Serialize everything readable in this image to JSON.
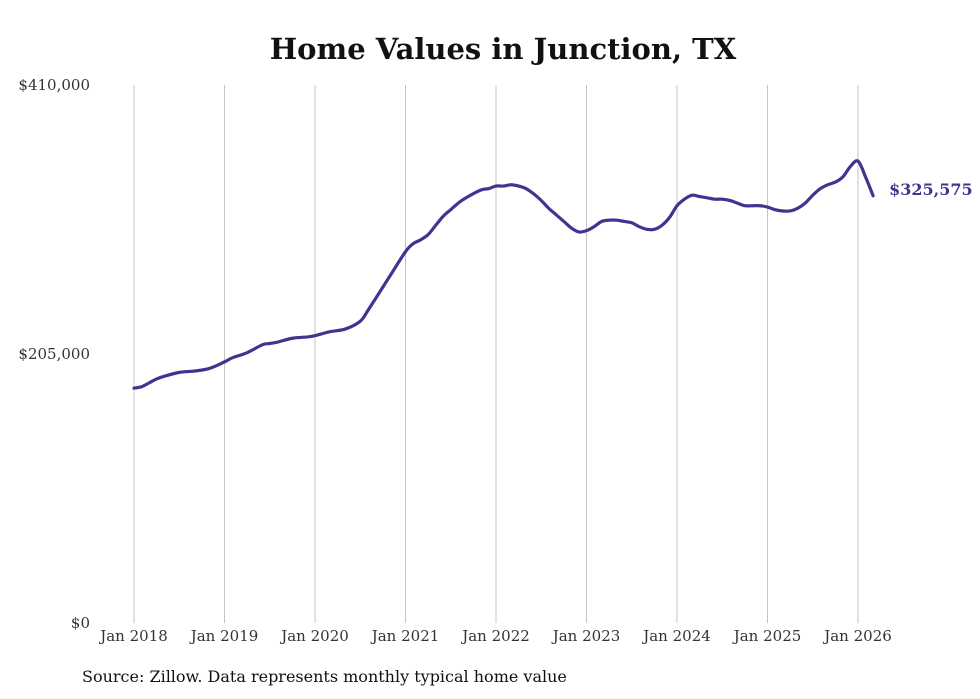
{
  "chart_data": {
    "type": "line",
    "title": "Home Values in Junction, TX",
    "xlabel": "",
    "ylabel": "",
    "ylim": [
      0,
      410000
    ],
    "y_ticks": [
      {
        "value": 0,
        "label": "$0"
      },
      {
        "value": 205000,
        "label": "$205,000"
      },
      {
        "value": 410000,
        "label": "$410,000"
      }
    ],
    "x_ticks": [
      {
        "value": 2018.0,
        "label": "Jan 2018"
      },
      {
        "value": 2019.0,
        "label": "Jan 2019"
      },
      {
        "value": 2020.0,
        "label": "Jan 2020"
      },
      {
        "value": 2021.0,
        "label": "Jan 2021"
      },
      {
        "value": 2022.0,
        "label": "Jan 2022"
      },
      {
        "value": 2023.0,
        "label": "Jan 2023"
      },
      {
        "value": 2024.0,
        "label": "Jan 2024"
      },
      {
        "value": 2025.0,
        "label": "Jan 2025"
      },
      {
        "value": 2026.0,
        "label": "Jan 2026"
      }
    ],
    "xlim": [
      2018.0,
      2026.167
    ],
    "grid": "vertical",
    "series": [
      {
        "name": "Typical home value",
        "color": "#3f3590",
        "x": [
          2018.0,
          2018.083,
          2018.167,
          2018.25,
          2018.333,
          2018.5,
          2018.667,
          2018.833,
          2019.0,
          2019.083,
          2019.25,
          2019.417,
          2019.5,
          2019.583,
          2019.75,
          2019.917,
          2020.0,
          2020.167,
          2020.333,
          2020.5,
          2020.583,
          2020.667,
          2020.833,
          2021.0,
          2021.083,
          2021.167,
          2021.25,
          2021.333,
          2021.417,
          2021.5,
          2021.583,
          2021.667,
          2021.833,
          2021.917,
          2022.0,
          2022.083,
          2022.167,
          2022.25,
          2022.333,
          2022.417,
          2022.5,
          2022.583,
          2022.667,
          2022.75,
          2022.833,
          2022.917,
          2023.0,
          2023.083,
          2023.167,
          2023.25,
          2023.333,
          2023.417,
          2023.5,
          2023.583,
          2023.667,
          2023.75,
          2023.833,
          2023.917,
          2024.0,
          2024.083,
          2024.167,
          2024.25,
          2024.333,
          2024.417,
          2024.5,
          2024.583,
          2024.667,
          2024.75,
          2024.833,
          2024.917,
          2025.0,
          2025.083,
          2025.167,
          2025.25,
          2025.333,
          2025.417,
          2025.5,
          2025.583,
          2025.667,
          2025.75,
          2025.833,
          2025.917,
          2026.0,
          2026.083,
          2026.167
        ],
        "values": [
          179000,
          180000,
          183000,
          186000,
          188000,
          191000,
          192000,
          194000,
          199000,
          202000,
          206000,
          212000,
          213000,
          214000,
          217000,
          218000,
          219000,
          222000,
          224000,
          230000,
          238000,
          247000,
          265000,
          283000,
          289000,
          292000,
          296000,
          303000,
          310000,
          315000,
          320000,
          324000,
          330000,
          331000,
          333000,
          333000,
          334000,
          333000,
          331000,
          327000,
          322000,
          316000,
          311000,
          306000,
          301000,
          298000,
          299000,
          302000,
          306000,
          307000,
          307000,
          306000,
          305000,
          302000,
          300000,
          300000,
          303000,
          309000,
          318000,
          323000,
          326000,
          325000,
          324000,
          323000,
          323000,
          322000,
          320000,
          318000,
          318000,
          318000,
          317000,
          315000,
          314000,
          314000,
          316000,
          320000,
          326000,
          331000,
          334000,
          336000,
          340000,
          348000,
          352000,
          340000,
          325575
        ]
      }
    ],
    "annotations": [
      {
        "text": "$325,575",
        "x": 2026.167,
        "y": 325575
      }
    ],
    "source": "Source: Zillow. Data represents monthly typical home value"
  }
}
